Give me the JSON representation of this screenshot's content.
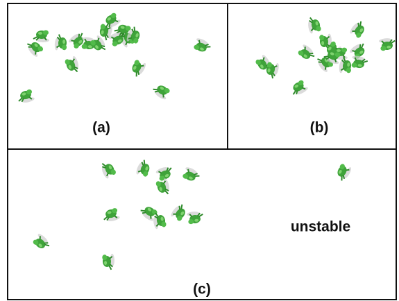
{
  "panels": [
    {
      "label": "(a)"
    },
    {
      "label": "(b)"
    },
    {
      "label": "(c)",
      "note": "unstable"
    }
  ]
}
